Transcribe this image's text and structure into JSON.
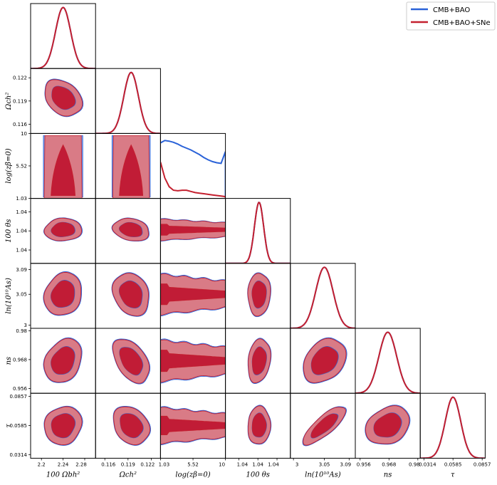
{
  "chart_data": {
    "type": "corner",
    "title": "",
    "legend": {
      "placement": "top-right",
      "entries": [
        {
          "name": "CMB+BAO",
          "color": "#2a62d8"
        },
        {
          "name": "CMB+BAO+SNe",
          "color": "#c4202f"
        }
      ]
    },
    "colors": {
      "blue_line": "#2a62d8",
      "blue_fill_outer": "#7f9ee8",
      "blue_fill_inner": "#3a66d6",
      "red_line": "#c4202f",
      "red_fill_outer": "#d97b86",
      "red_fill_inner": "#c11c36"
    },
    "parameters": [
      {
        "name": "omega_b",
        "label": "100 Ωbh²",
        "range": [
          2.18,
          2.3
        ],
        "ticks": [
          2.2,
          2.24,
          2.28
        ],
        "tick_labels": [
          "2.2",
          "2.24",
          "2.28"
        ],
        "mean": 2.24,
        "sigma": 0.014
      },
      {
        "name": "omega_c",
        "label": "Ωch²",
        "range": [
          0.1148,
          0.1232
        ],
        "ticks": [
          0.116,
          0.119,
          0.122
        ],
        "tick_labels": [
          "0.116",
          "0.119",
          "0.122"
        ],
        "mean": 0.1194,
        "sigma": 0.00095
      },
      {
        "name": "log_z",
        "label": "log(zβ=0)",
        "range": [
          1.03,
          10
        ],
        "ticks": [
          1.03,
          5.52,
          10
        ],
        "tick_labels": [
          "1.03",
          "5.52",
          "10"
        ]
      },
      {
        "name": "theta_s",
        "label": "100 θs",
        "range": [
          1.0408,
          1.0425
        ],
        "ticks": [
          1.04115,
          1.04165,
          1.04215
        ],
        "tick_labels": [
          "1.04",
          "1.04",
          "1.04"
        ],
        "mean": 1.04168,
        "sigma": 0.00012
      },
      {
        "name": "ln_As",
        "label": "ln(10¹⁰As)",
        "range": [
          2.995,
          3.1
        ],
        "ticks": [
          3,
          3.05,
          3.09
        ],
        "tick_labels": [
          "3",
          "3.05",
          "3.09"
        ],
        "mean": 3.05,
        "sigma": 0.014
      },
      {
        "name": "n_s",
        "label": "ns",
        "range": [
          0.954,
          0.981
        ],
        "ticks": [
          0.956,
          0.968,
          0.98
        ],
        "tick_labels": [
          "0.956",
          "0.968",
          "0.98"
        ],
        "mean": 0.9675,
        "sigma": 0.0037
      },
      {
        "name": "tau",
        "label": "τ",
        "range": [
          0.028,
          0.0885
        ],
        "ticks": [
          0.0314,
          0.0585,
          0.0857
        ],
        "tick_labels": [
          "0.0314",
          "0.0585",
          "0.0857"
        ],
        "mean": 0.0585,
        "sigma": 0.0072
      }
    ],
    "series": [
      {
        "name": "CMB+BAO",
        "logz_density": [
          0.95,
          0.99,
          0.98,
          0.96,
          0.93,
          0.89,
          0.86,
          0.83,
          0.79,
          0.75,
          0.7,
          0.66,
          0.63,
          0.61,
          0.6,
          0.8
        ]
      },
      {
        "name": "CMB+BAO+SNe",
        "logz_density": [
          0.62,
          0.35,
          0.2,
          0.14,
          0.13,
          0.14,
          0.14,
          0.12,
          0.1,
          0.09,
          0.08,
          0.07,
          0.06,
          0.05,
          0.04,
          0.03
        ]
      }
    ],
    "correlations": {
      "omega_b|omega_c": -0.3,
      "omega_b|theta_s": 0.05,
      "omega_b|ln_As": 0.15,
      "omega_b|n_s": 0.25,
      "omega_b|tau": 0.1,
      "omega_c|theta_s": -0.2,
      "omega_c|ln_As": -0.2,
      "omega_c|n_s": -0.45,
      "omega_c|tau": -0.25,
      "theta_s|ln_As": 0.05,
      "theta_s|n_s": 0.2,
      "theta_s|tau": 0.05,
      "ln_As|n_s": 0.3,
      "ln_As|tau": 0.8,
      "n_s|tau": 0.25
    }
  }
}
